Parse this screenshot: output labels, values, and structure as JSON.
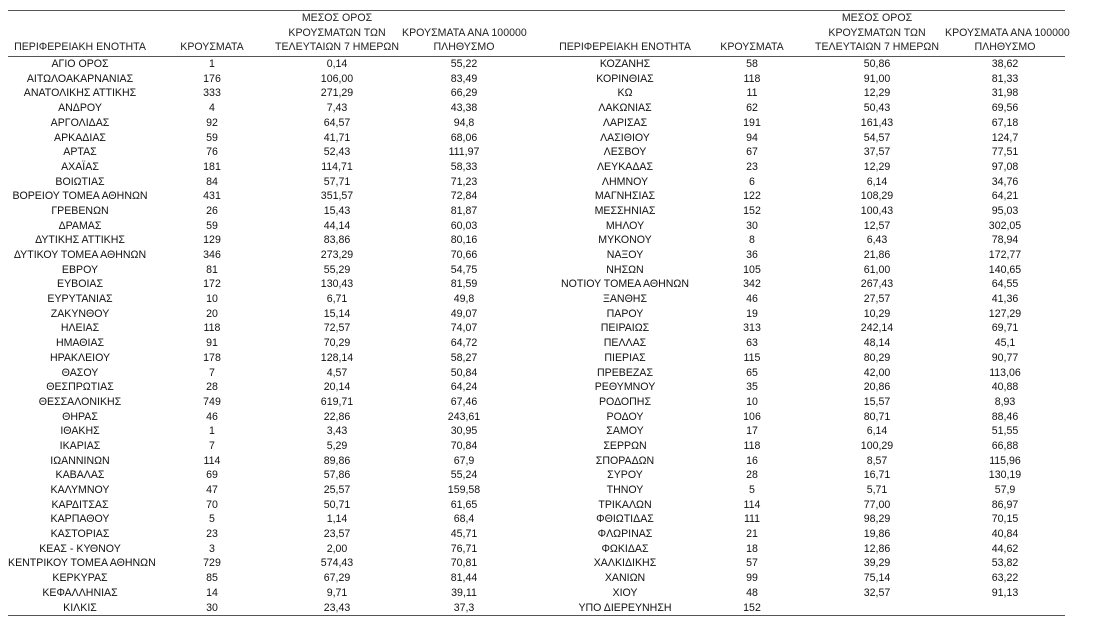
{
  "headers": {
    "region": "ΠΕΡΙΦΕΡΕΙΑΚΗ ΕΝΟΤΗΤΑ",
    "cases": "ΚΡΟΥΣΜΑΤΑ",
    "avg_line1": "ΜΕΣΟΣ ΟΡΟΣ",
    "avg_line2": "ΚΡΟΥΣΜΑΤΩΝ ΤΩΝ",
    "avg_line3": "ΤΕΛΕΥΤΑΙΩΝ 7 ΗΜΕΡΩΝ",
    "per_line1": "ΚΡΟΥΣΜΑΤΑ ΑΝΑ 100000",
    "per_line2": "ΠΛΗΘΥΣΜΟ"
  },
  "left_rows": [
    [
      "ΑΓΙΟ ΟΡΟΣ",
      "1",
      "0,14",
      "55,22"
    ],
    [
      "ΑΙΤΩΛΟΑΚΑΡΝΑΝΙΑΣ",
      "176",
      "106,00",
      "83,49"
    ],
    [
      "ΑΝΑΤΟΛΙΚΗΣ ΑΤΤΙΚΗΣ",
      "333",
      "271,29",
      "66,29"
    ],
    [
      "ΑΝΔΡΟΥ",
      "4",
      "7,43",
      "43,38"
    ],
    [
      "ΑΡΓΟΛΙΔΑΣ",
      "92",
      "64,57",
      "94,8"
    ],
    [
      "ΑΡΚΑΔΙΑΣ",
      "59",
      "41,71",
      "68,06"
    ],
    [
      "ΑΡΤΑΣ",
      "76",
      "52,43",
      "111,97"
    ],
    [
      "ΑΧΑΪΑΣ",
      "181",
      "114,71",
      "58,33"
    ],
    [
      "ΒΟΙΩΤΙΑΣ",
      "84",
      "57,71",
      "71,23"
    ],
    [
      "ΒΟΡΕΙΟΥ ΤΟΜΕΑ ΑΘΗΝΩΝ",
      "431",
      "351,57",
      "72,84"
    ],
    [
      "ΓΡΕΒΕΝΩΝ",
      "26",
      "15,43",
      "81,87"
    ],
    [
      "ΔΡΑΜΑΣ",
      "59",
      "44,14",
      "60,03"
    ],
    [
      "ΔΥΤΙΚΗΣ ΑΤΤΙΚΗΣ",
      "129",
      "83,86",
      "80,16"
    ],
    [
      "ΔΥΤΙΚΟΥ ΤΟΜΕΑ ΑΘΗΝΩΝ",
      "346",
      "273,29",
      "70,66"
    ],
    [
      "ΕΒΡΟΥ",
      "81",
      "55,29",
      "54,75"
    ],
    [
      "ΕΥΒΟΙΑΣ",
      "172",
      "130,43",
      "81,59"
    ],
    [
      "ΕΥΡΥΤΑΝΙΑΣ",
      "10",
      "6,71",
      "49,8"
    ],
    [
      "ΖΑΚΥΝΘΟΥ",
      "20",
      "15,14",
      "49,07"
    ],
    [
      "ΗΛΕΙΑΣ",
      "118",
      "72,57",
      "74,07"
    ],
    [
      "ΗΜΑΘΙΑΣ",
      "91",
      "70,29",
      "64,72"
    ],
    [
      "ΗΡΑΚΛΕΙΟΥ",
      "178",
      "128,14",
      "58,27"
    ],
    [
      "ΘΑΣΟΥ",
      "7",
      "4,57",
      "50,84"
    ],
    [
      "ΘΕΣΠΡΩΤΙΑΣ",
      "28",
      "20,14",
      "64,24"
    ],
    [
      "ΘΕΣΣΑΛΟΝΙΚΗΣ",
      "749",
      "619,71",
      "67,46"
    ],
    [
      "ΘΗΡΑΣ",
      "46",
      "22,86",
      "243,61"
    ],
    [
      "ΙΘΑΚΗΣ",
      "1",
      "3,43",
      "30,95"
    ],
    [
      "ΙΚΑΡΙΑΣ",
      "7",
      "5,29",
      "70,84"
    ],
    [
      "ΙΩΑΝΝΙΝΩΝ",
      "114",
      "89,86",
      "67,9"
    ],
    [
      "ΚΑΒΑΛΑΣ",
      "69",
      "57,86",
      "55,24"
    ],
    [
      "ΚΑΛΥΜΝΟΥ",
      "47",
      "25,57",
      "159,58"
    ],
    [
      "ΚΑΡΔΙΤΣΑΣ",
      "70",
      "50,71",
      "61,65"
    ],
    [
      "ΚΑΡΠΑΘΟΥ",
      "5",
      "1,14",
      "68,4"
    ],
    [
      "ΚΑΣΤΟΡΙΑΣ",
      "23",
      "23,57",
      "45,71"
    ],
    [
      "ΚΕΑΣ - ΚΥΘΝΟΥ",
      "3",
      "2,00",
      "76,71"
    ],
    [
      "ΚΕΝΤΡΙΚΟΥ ΤΟΜΕΑ ΑΘΗΝΩΝ",
      "729",
      "574,43",
      "70,81"
    ],
    [
      "ΚΕΡΚΥΡΑΣ",
      "85",
      "67,29",
      "81,44"
    ],
    [
      "ΚΕΦΑΛΛΗΝΙΑΣ",
      "14",
      "9,71",
      "39,11"
    ],
    [
      "ΚΙΛΚΙΣ",
      "30",
      "23,43",
      "37,3"
    ]
  ],
  "right_rows": [
    [
      "ΚΟΖΑΝΗΣ",
      "58",
      "50,86",
      "38,62"
    ],
    [
      "ΚΟΡΙΝΘΙΑΣ",
      "118",
      "91,00",
      "81,33"
    ],
    [
      "ΚΩ",
      "11",
      "12,29",
      "31,98"
    ],
    [
      "ΛΑΚΩΝΙΑΣ",
      "62",
      "50,43",
      "69,56"
    ],
    [
      "ΛΑΡΙΣΑΣ",
      "191",
      "161,43",
      "67,18"
    ],
    [
      "ΛΑΣΙΘΙΟΥ",
      "94",
      "54,57",
      "124,7"
    ],
    [
      "ΛΕΣΒΟΥ",
      "67",
      "37,57",
      "77,51"
    ],
    [
      "ΛΕΥΚΑΔΑΣ",
      "23",
      "12,29",
      "97,08"
    ],
    [
      "ΛΗΜΝΟΥ",
      "6",
      "6,14",
      "34,76"
    ],
    [
      "ΜΑΓΝΗΣΙΑΣ",
      "122",
      "108,29",
      "64,21"
    ],
    [
      "ΜΕΣΣΗΝΙΑΣ",
      "152",
      "100,43",
      "95,03"
    ],
    [
      "ΜΗΛΟΥ",
      "30",
      "12,57",
      "302,05"
    ],
    [
      "ΜΥΚΟΝΟΥ",
      "8",
      "6,43",
      "78,94"
    ],
    [
      "ΝΑΞΟΥ",
      "36",
      "21,86",
      "172,77"
    ],
    [
      "ΝΗΣΩΝ",
      "105",
      "61,00",
      "140,65"
    ],
    [
      "ΝΟΤΙΟΥ ΤΟΜΕΑ ΑΘΗΝΩΝ",
      "342",
      "267,43",
      "64,55"
    ],
    [
      "ΞΑΝΘΗΣ",
      "46",
      "27,57",
      "41,36"
    ],
    [
      "ΠΑΡΟΥ",
      "19",
      "10,29",
      "127,29"
    ],
    [
      "ΠΕΙΡΑΙΩΣ",
      "313",
      "242,14",
      "69,71"
    ],
    [
      "ΠΕΛΛΑΣ",
      "63",
      "48,14",
      "45,1"
    ],
    [
      "ΠΙΕΡΙΑΣ",
      "115",
      "80,29",
      "90,77"
    ],
    [
      "ΠΡΕΒΕΖΑΣ",
      "65",
      "42,00",
      "113,06"
    ],
    [
      "ΡΕΘΥΜΝΟΥ",
      "35",
      "20,86",
      "40,88"
    ],
    [
      "ΡΟΔΟΠΗΣ",
      "10",
      "15,57",
      "8,93"
    ],
    [
      "ΡΟΔΟΥ",
      "106",
      "80,71",
      "88,46"
    ],
    [
      "ΣΑΜΟΥ",
      "17",
      "6,14",
      "51,55"
    ],
    [
      "ΣΕΡΡΩΝ",
      "118",
      "100,29",
      "66,88"
    ],
    [
      "ΣΠΟΡΑΔΩΝ",
      "16",
      "8,57",
      "115,96"
    ],
    [
      "ΣΥΡΟΥ",
      "28",
      "16,71",
      "130,19"
    ],
    [
      "ΤΗΝΟΥ",
      "5",
      "5,71",
      "57,9"
    ],
    [
      "ΤΡΙΚΑΛΩΝ",
      "114",
      "77,00",
      "86,97"
    ],
    [
      "ΦΘΙΩΤΙΔΑΣ",
      "111",
      "98,29",
      "70,15"
    ],
    [
      "ΦΛΩΡΙΝΑΣ",
      "21",
      "19,86",
      "40,84"
    ],
    [
      "ΦΩΚΙΔΑΣ",
      "18",
      "12,86",
      "44,62"
    ],
    [
      "ΧΑΛΚΙΔΙΚΗΣ",
      "57",
      "39,29",
      "53,82"
    ],
    [
      "ΧΑΝΙΩΝ",
      "99",
      "75,14",
      "63,22"
    ],
    [
      "ΧΙΟΥ",
      "48",
      "32,57",
      "91,13"
    ],
    [
      "ΥΠΟ ΔΙΕΡΕΥΝΗΣΗ",
      "152",
      "",
      ""
    ]
  ]
}
